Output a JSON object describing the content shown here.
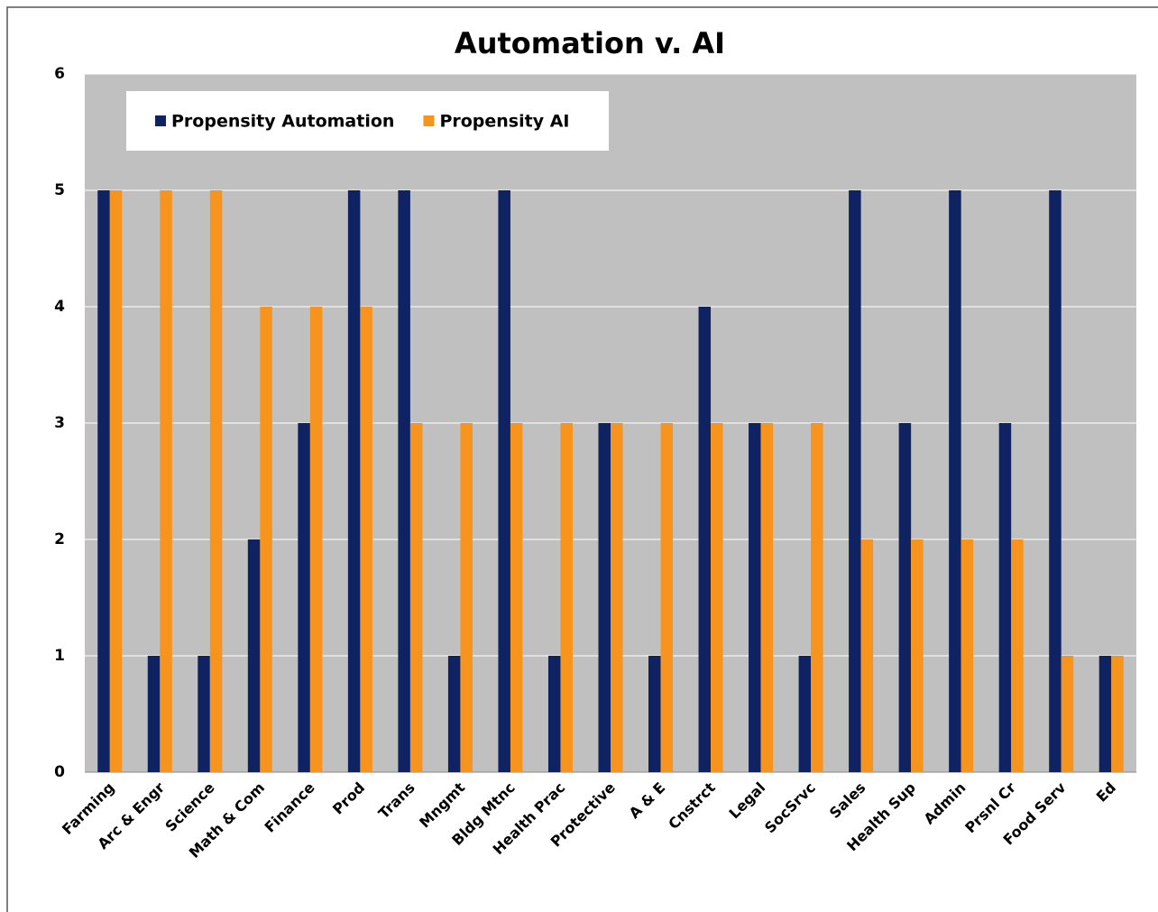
{
  "chart_data": {
    "type": "bar",
    "title": "Automation v. AI",
    "categories": [
      "Farming",
      "Arc & Engr",
      "Science",
      "Math & Com",
      "Finance",
      "Prod",
      "Trans",
      "Mngmt",
      "Bldg Mtnc",
      "Health Prac",
      "Protective",
      "A & E",
      "Cnstrct",
      "Legal",
      "SocSrvc",
      "Sales",
      "Health Sup",
      "Admin",
      "Prsnl Cr",
      "Food Serv",
      "Ed"
    ],
    "series": [
      {
        "name": "Propensity Automation",
        "color": "#0f2262",
        "values": [
          5,
          1,
          1,
          2,
          3,
          5,
          5,
          1,
          5,
          1,
          3,
          1,
          4,
          3,
          1,
          5,
          3,
          5,
          3,
          5,
          1
        ]
      },
      {
        "name": "Propensity AI",
        "color": "#f7941d",
        "values": [
          5,
          5,
          5,
          4,
          4,
          4,
          3,
          3,
          3,
          3,
          3,
          3,
          3,
          3,
          3,
          2,
          2,
          2,
          2,
          1,
          1
        ]
      }
    ],
    "ylim": [
      0,
      6
    ],
    "yticks": [
      0,
      1,
      2,
      3,
      4,
      5,
      6
    ],
    "grid": true,
    "legend": "top-left"
  }
}
